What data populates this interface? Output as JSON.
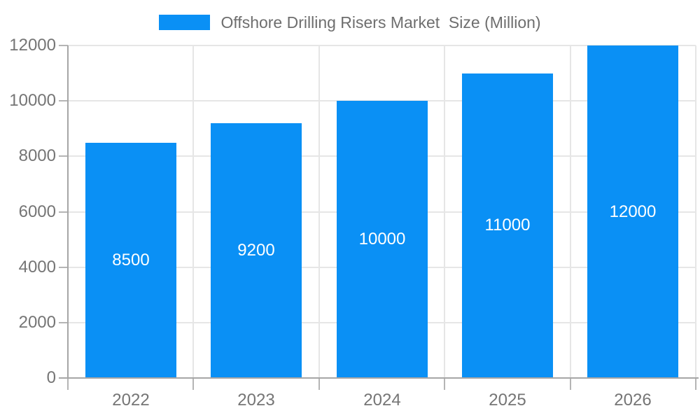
{
  "chart_data": {
    "type": "bar",
    "title": "Offshore Drilling Risers Market  Size (Million)",
    "legend": {
      "position": "top",
      "entries": [
        {
          "label": "Offshore Drilling Risers Market  Size (Million)",
          "color": "#0a90f5"
        }
      ]
    },
    "categories": [
      "2022",
      "2023",
      "2024",
      "2025",
      "2026"
    ],
    "series": [
      {
        "name": "Offshore Drilling Risers Market  Size (Million)",
        "values": [
          8500,
          9200,
          10000,
          11000,
          12000
        ]
      }
    ],
    "bar_value_labels": [
      "8500",
      "9200",
      "10000",
      "11000",
      "12000"
    ],
    "xlabel": "",
    "ylabel": "",
    "y_axis": {
      "min": 0,
      "max": 12000,
      "tick_step": 2000,
      "tick_labels": [
        "0",
        "2000",
        "4000",
        "6000",
        "8000",
        "10000",
        "12000"
      ]
    },
    "grid": "on",
    "colors": {
      "bar": "#0a90f5",
      "bar_label_text": "#ffffff",
      "axis_text": "#757575",
      "legend_text": "#6e6e6e",
      "gridline": "#e6e6e6",
      "axis_line": "#a6a6a6",
      "tick": "#b5b5b5",
      "background": "#ffffff"
    }
  }
}
